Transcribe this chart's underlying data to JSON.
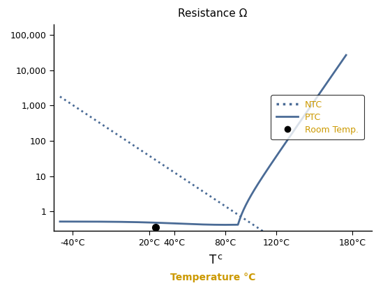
{
  "title": "Resistance Ω",
  "xlabel_tc": "T",
  "xlabel_tc_sub": "c",
  "xlabel_temp": "Temperature °C",
  "xlim": [
    -55,
    195
  ],
  "ylim": [
    0.28,
    200000
  ],
  "x_ticks_pos": [
    -40,
    20,
    40,
    80,
    120,
    180
  ],
  "x_tick_labels": [
    "-40°C",
    "20°C",
    "40°C",
    "80°C",
    "120°C",
    "180°C"
  ],
  "y_ticks": [
    1,
    10,
    100,
    1000,
    10000,
    100000
  ],
  "y_tick_labels": [
    "1",
    "10",
    "100",
    "1,000",
    "10,000",
    "100,000"
  ],
  "room_temp_x": 25,
  "room_temp_y": 0.35,
  "line_color": "#4a6b96",
  "dot_color": "#000000",
  "legend_text_color": "#cc9900",
  "title_fontsize": 11,
  "label_fontsize": 10,
  "tick_fontsize": 9,
  "ntc_x_start": -50,
  "ntc_x_end": 185,
  "ntc_A": 1800,
  "ntc_B": 0.055,
  "ptc_flat_val": 0.52,
  "ptc_min_val": 0.42,
  "ptc_rise_start": 90,
  "ptc_rise_k": 0.12,
  "ptc_x_end": 175
}
